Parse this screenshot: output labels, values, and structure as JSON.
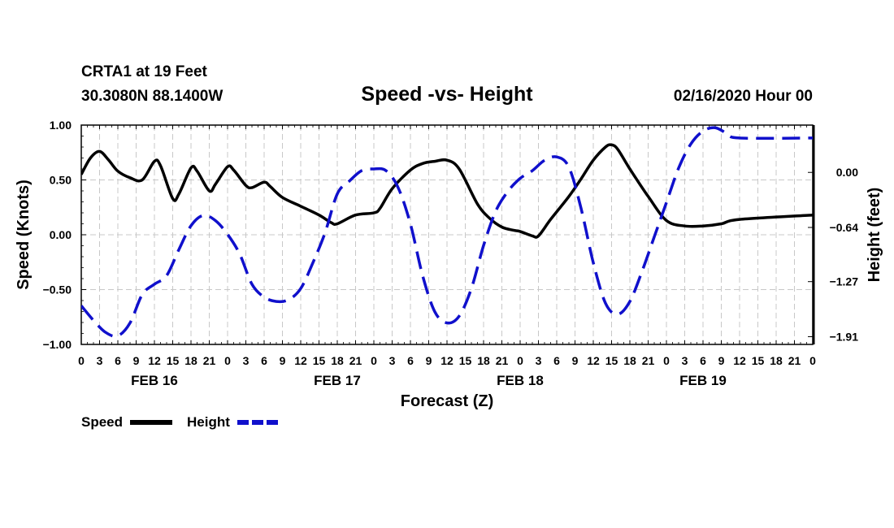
{
  "header": {
    "station": "CRTA1 at 19 Feet",
    "coords": "30.3080N 88.1400W",
    "title": "Speed -vs- Height",
    "issued": "02/16/2020 Hour 00"
  },
  "chart_data": {
    "type": "line",
    "title": "Speed -vs- Height",
    "xlabel": "Forecast (Z)",
    "x_hours": [
      0,
      3,
      6,
      9,
      12,
      15,
      18,
      21,
      24,
      27,
      30,
      33,
      36,
      39,
      42,
      45,
      48,
      51,
      54,
      57,
      60,
      63,
      66,
      69,
      72,
      75,
      78,
      81,
      84,
      87,
      90,
      93,
      96,
      99,
      102,
      105,
      108,
      111,
      114,
      117,
      120
    ],
    "x_tick_labels": [
      "0",
      "3",
      "6",
      "9",
      "12",
      "15",
      "18",
      "21",
      "0",
      "3",
      "6",
      "9",
      "12",
      "15",
      "18",
      "21",
      "0",
      "3",
      "6",
      "9",
      "12",
      "15",
      "18",
      "21",
      "0",
      "3",
      "6",
      "9",
      "12",
      "15",
      "18",
      "21",
      "0",
      "3",
      "6",
      "9",
      "12",
      "15",
      "18",
      "21",
      "0"
    ],
    "date_labels": [
      {
        "hour": 12,
        "label": "FEB 16"
      },
      {
        "hour": 42,
        "label": "FEB 17"
      },
      {
        "hour": 72,
        "label": "FEB 18"
      },
      {
        "hour": 102,
        "label": "FEB 19"
      }
    ],
    "y_left": {
      "label": "Speed (Knots)",
      "range": [
        -1.0,
        1.0
      ],
      "ticks": [
        1.0,
        0.5,
        0.0,
        -0.5,
        -1.0
      ],
      "tick_labels": [
        "1.00",
        "0.50",
        "0.00",
        "-0.50",
        "-1.00"
      ]
    },
    "y_right": {
      "label": "Height (feet)",
      "range": [
        -2.0,
        0.55
      ],
      "ticks": [
        0.0,
        -0.64,
        -1.27,
        -1.91
      ],
      "tick_labels": [
        "0.00",
        "-0.64",
        "-1.27",
        "-1.91"
      ]
    },
    "grid": true,
    "series": [
      {
        "name": "Speed",
        "axis": "left",
        "color": "#000000",
        "style": "solid",
        "points": [
          [
            0,
            0.55
          ],
          [
            1.5,
            0.7
          ],
          [
            3,
            0.76
          ],
          [
            4.5,
            0.68
          ],
          [
            6,
            0.58
          ],
          [
            8,
            0.52
          ],
          [
            10,
            0.5
          ],
          [
            12,
            0.67
          ],
          [
            13,
            0.63
          ],
          [
            15,
            0.33
          ],
          [
            16,
            0.37
          ],
          [
            18,
            0.61
          ],
          [
            19,
            0.58
          ],
          [
            21,
            0.4
          ],
          [
            22,
            0.46
          ],
          [
            24,
            0.62
          ],
          [
            25,
            0.59
          ],
          [
            27,
            0.45
          ],
          [
            28,
            0.43
          ],
          [
            30,
            0.48
          ],
          [
            31,
            0.44
          ],
          [
            33,
            0.34
          ],
          [
            36,
            0.26
          ],
          [
            39,
            0.18
          ],
          [
            41,
            0.11
          ],
          [
            42,
            0.1
          ],
          [
            45,
            0.18
          ],
          [
            48,
            0.2
          ],
          [
            49,
            0.24
          ],
          [
            51,
            0.42
          ],
          [
            54,
            0.59
          ],
          [
            56,
            0.65
          ],
          [
            58,
            0.67
          ],
          [
            60,
            0.68
          ],
          [
            62,
            0.6
          ],
          [
            65,
            0.28
          ],
          [
            67,
            0.15
          ],
          [
            69,
            0.07
          ],
          [
            71,
            0.04
          ],
          [
            72,
            0.03
          ],
          [
            74,
            -0.01
          ],
          [
            75,
            -0.01
          ],
          [
            77,
            0.14
          ],
          [
            80,
            0.35
          ],
          [
            82,
            0.51
          ],
          [
            84,
            0.68
          ],
          [
            86,
            0.8
          ],
          [
            87,
            0.82
          ],
          [
            88,
            0.78
          ],
          [
            90,
            0.6
          ],
          [
            93,
            0.35
          ],
          [
            96,
            0.13
          ],
          [
            99,
            0.08
          ],
          [
            102,
            0.08
          ],
          [
            105,
            0.1
          ],
          [
            108,
            0.14
          ],
          [
            120,
            0.18
          ]
        ]
      },
      {
        "name": "Height",
        "axis": "right",
        "color": "#1010cc",
        "style": "dashed",
        "points": [
          [
            0,
            -1.55
          ],
          [
            2,
            -1.72
          ],
          [
            4,
            -1.86
          ],
          [
            6,
            -1.9
          ],
          [
            8,
            -1.75
          ],
          [
            10,
            -1.42
          ],
          [
            12,
            -1.3
          ],
          [
            14,
            -1.2
          ],
          [
            16,
            -0.9
          ],
          [
            18,
            -0.62
          ],
          [
            20,
            -0.5
          ],
          [
            22,
            -0.56
          ],
          [
            24,
            -0.72
          ],
          [
            26,
            -0.95
          ],
          [
            28,
            -1.3
          ],
          [
            30,
            -1.45
          ],
          [
            32,
            -1.5
          ],
          [
            34,
            -1.48
          ],
          [
            36,
            -1.35
          ],
          [
            38,
            -1.05
          ],
          [
            40,
            -0.7
          ],
          [
            42,
            -0.25
          ],
          [
            44,
            -0.1
          ],
          [
            46,
            0.02
          ],
          [
            48,
            0.04
          ],
          [
            50,
            0.02
          ],
          [
            52,
            -0.18
          ],
          [
            54,
            -0.6
          ],
          [
            56,
            -1.2
          ],
          [
            58,
            -1.62
          ],
          [
            60,
            -1.75
          ],
          [
            62,
            -1.67
          ],
          [
            64,
            -1.35
          ],
          [
            66,
            -0.85
          ],
          [
            68,
            -0.45
          ],
          [
            70,
            -0.22
          ],
          [
            72,
            -0.07
          ],
          [
            74,
            0.02
          ],
          [
            76,
            0.14
          ],
          [
            78,
            0.18
          ],
          [
            80,
            0.06
          ],
          [
            82,
            -0.42
          ],
          [
            84,
            -1.05
          ],
          [
            86,
            -1.52
          ],
          [
            88,
            -1.65
          ],
          [
            90,
            -1.5
          ],
          [
            92,
            -1.15
          ],
          [
            94,
            -0.75
          ],
          [
            96,
            -0.35
          ],
          [
            98,
            0.05
          ],
          [
            100,
            0.33
          ],
          [
            102,
            0.48
          ],
          [
            104,
            0.52
          ],
          [
            106,
            0.45
          ],
          [
            108,
            0.4
          ],
          [
            120,
            0.4
          ]
        ]
      }
    ]
  },
  "legend": {
    "speed_label": "Speed",
    "height_label": "Height"
  }
}
